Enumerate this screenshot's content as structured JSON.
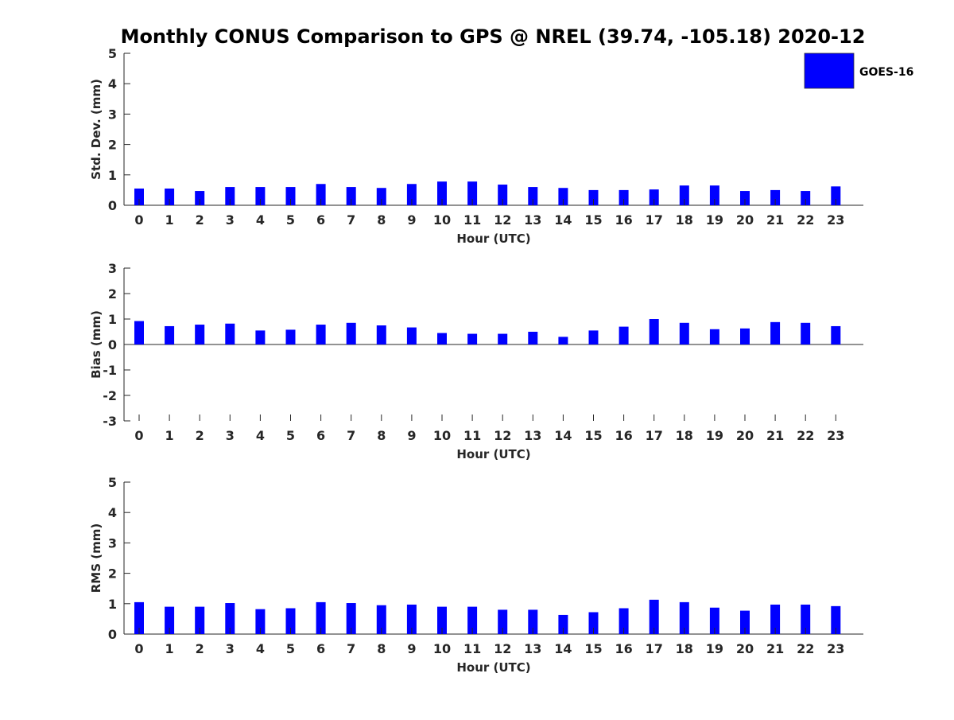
{
  "title": "Monthly CONUS Comparison to GPS @ NREL (39.74, -105.18) 2020-12",
  "legend": {
    "label": "GOES-16",
    "color": "#0000ff"
  },
  "chart_data": [
    {
      "type": "bar",
      "name": "std-dev",
      "categories": [
        "0",
        "1",
        "2",
        "3",
        "4",
        "5",
        "6",
        "7",
        "8",
        "9",
        "10",
        "11",
        "12",
        "13",
        "14",
        "15",
        "16",
        "17",
        "18",
        "19",
        "20",
        "21",
        "22",
        "23"
      ],
      "series": [
        {
          "name": "GOES-16",
          "values": [
            0.55,
            0.55,
            0.47,
            0.6,
            0.6,
            0.6,
            0.7,
            0.6,
            0.57,
            0.7,
            0.78,
            0.78,
            0.68,
            0.6,
            0.57,
            0.5,
            0.5,
            0.52,
            0.65,
            0.65,
            0.47,
            0.5,
            0.47,
            0.62
          ]
        }
      ],
      "xlabel": "Hour (UTC)",
      "ylabel": "Std. Dev. (mm)",
      "ylim": [
        0,
        5
      ],
      "yticks": [
        "0",
        "1",
        "2",
        "3",
        "4",
        "5"
      ]
    },
    {
      "type": "bar",
      "name": "bias",
      "categories": [
        "0",
        "1",
        "2",
        "3",
        "4",
        "5",
        "6",
        "7",
        "8",
        "9",
        "10",
        "11",
        "12",
        "13",
        "14",
        "15",
        "16",
        "17",
        "18",
        "19",
        "20",
        "21",
        "22",
        "23"
      ],
      "series": [
        {
          "name": "GOES-16",
          "values": [
            0.92,
            0.72,
            0.78,
            0.82,
            0.55,
            0.58,
            0.78,
            0.85,
            0.75,
            0.67,
            0.45,
            0.42,
            0.42,
            0.5,
            0.3,
            0.55,
            0.7,
            1.0,
            0.85,
            0.6,
            0.63,
            0.88,
            0.85,
            0.72
          ]
        }
      ],
      "xlabel": "Hour (UTC)",
      "ylabel": "Bias (mm)",
      "ylim": [
        -3,
        3
      ],
      "yticks": [
        "-3",
        "-2",
        "-1",
        "0",
        "1",
        "2",
        "3"
      ]
    },
    {
      "type": "bar",
      "name": "rms",
      "categories": [
        "0",
        "1",
        "2",
        "3",
        "4",
        "5",
        "6",
        "7",
        "8",
        "9",
        "10",
        "11",
        "12",
        "13",
        "14",
        "15",
        "16",
        "17",
        "18",
        "19",
        "20",
        "21",
        "22",
        "23"
      ],
      "series": [
        {
          "name": "GOES-16",
          "values": [
            1.05,
            0.9,
            0.9,
            1.02,
            0.82,
            0.85,
            1.05,
            1.02,
            0.95,
            0.97,
            0.9,
            0.9,
            0.8,
            0.8,
            0.63,
            0.72,
            0.85,
            1.13,
            1.05,
            0.87,
            0.77,
            0.97,
            0.97,
            0.92
          ]
        }
      ],
      "xlabel": "Hour (UTC)",
      "ylabel": "RMS (mm)",
      "ylim": [
        0,
        5
      ],
      "yticks": [
        "0",
        "1",
        "2",
        "3",
        "4",
        "5"
      ]
    }
  ]
}
